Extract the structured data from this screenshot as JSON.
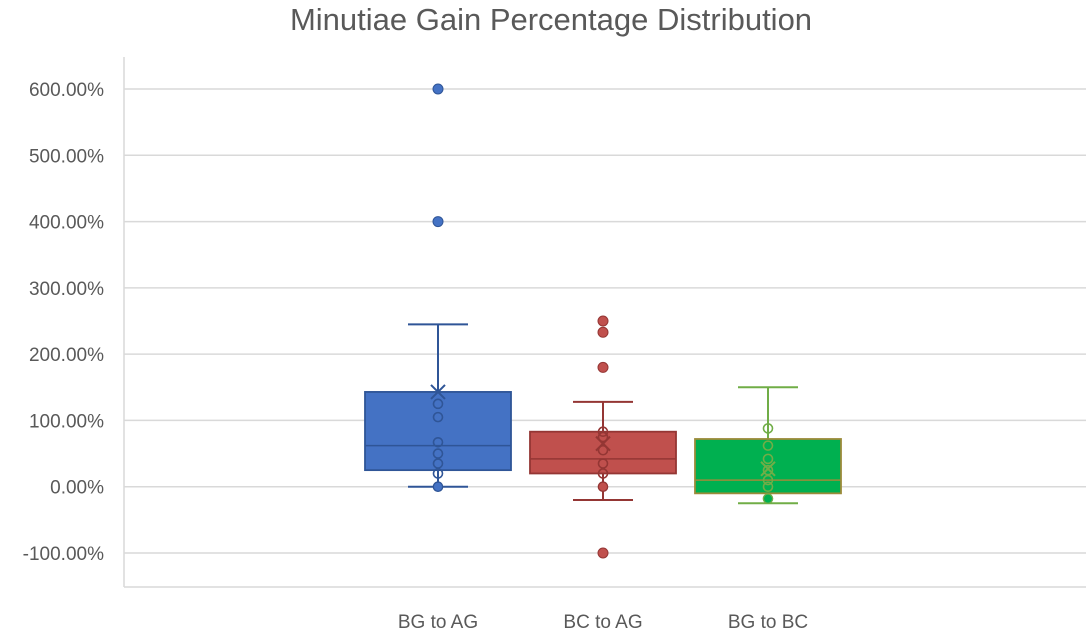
{
  "chart_data": {
    "type": "box",
    "title": "Minutiae Gain Percentage Distribution",
    "xlabel": "",
    "ylabel": "",
    "ylim": [
      -100,
      600
    ],
    "yticks": [
      -100,
      0,
      100,
      200,
      300,
      400,
      500,
      600
    ],
    "ytick_labels": [
      "-100.00%",
      "0.00%",
      "100.00%",
      "200.00%",
      "300.00%",
      "400.00%",
      "500.00%",
      "600.00%"
    ],
    "categories": [
      "BG to AG",
      "BC to AG",
      "BG to BC"
    ],
    "grid": true,
    "legend": "none",
    "series": [
      {
        "category": "BG to AG",
        "color": "#4472C4",
        "whisker_low": 0,
        "q1": 25,
        "median": 62,
        "q3": 143,
        "whisker_high": 245,
        "mean": 143,
        "points": [
          0,
          20,
          35,
          50,
          67,
          105,
          125
        ],
        "outliers": [
          400,
          600
        ]
      },
      {
        "category": "BC to AG",
        "color": "#C0504D",
        "whisker_low": -20,
        "q1": 20,
        "median": 42,
        "q3": 83,
        "whisker_high": 128,
        "mean": 65,
        "points": [
          0,
          20,
          35,
          55,
          75,
          83
        ],
        "outliers": [
          -100,
          180,
          233,
          250
        ]
      },
      {
        "category": "BG to BC",
        "color": "#00B050",
        "whisker_low": -25,
        "q1": -10,
        "median": 10,
        "q3": 72,
        "whisker_high": 150,
        "mean": 27,
        "points": [
          -18,
          0,
          10,
          25,
          42,
          62,
          88
        ],
        "outliers": []
      }
    ]
  }
}
